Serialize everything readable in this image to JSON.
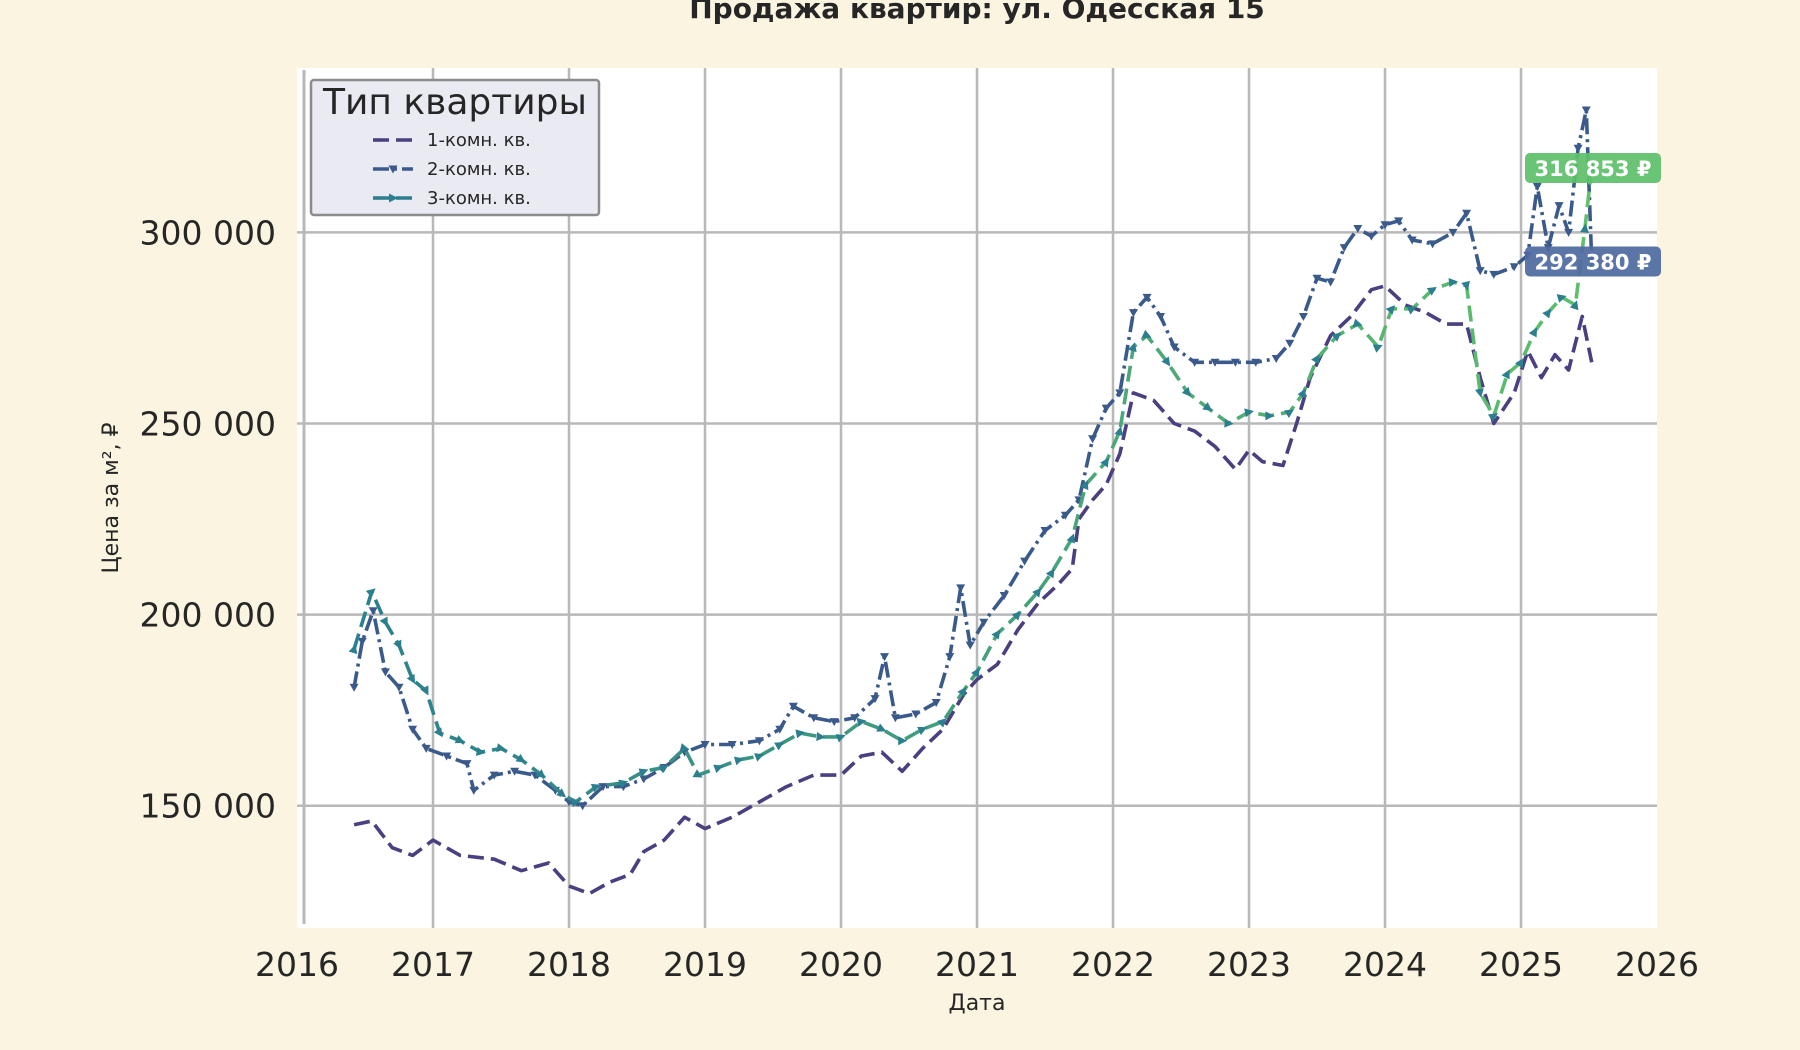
{
  "chart_data": {
    "type": "line",
    "title": "Продажа квартир: ул. Одесская 15",
    "xlabel": "Дата",
    "ylabel": "Цена за м², ₽",
    "xlim": [
      2016.0,
      2026.0
    ],
    "ylim": [
      118000,
      343000
    ],
    "x_ticks": [
      "2016",
      "2017",
      "2018",
      "2019",
      "2020",
      "2021",
      "2022",
      "2023",
      "2024",
      "2025",
      "2026"
    ],
    "y_ticks": [
      "150 000",
      "200 000",
      "250 000",
      "300 000"
    ],
    "grid": true,
    "legend": {
      "title": "Тип квартиры",
      "placement": "top-left"
    },
    "series": [
      {
        "name": "1-комн. кв.",
        "color": "#4a3f80",
        "line_style": "dashed",
        "marker": "none",
        "points": [
          [
            2016.42,
            145000
          ],
          [
            2016.55,
            146000
          ],
          [
            2016.7,
            139000
          ],
          [
            2016.85,
            137000
          ],
          [
            2017.0,
            141000
          ],
          [
            2017.2,
            137000
          ],
          [
            2017.45,
            136000
          ],
          [
            2017.65,
            133000
          ],
          [
            2017.85,
            135000
          ],
          [
            2018.0,
            129000
          ],
          [
            2018.15,
            127000
          ],
          [
            2018.3,
            130000
          ],
          [
            2018.45,
            132000
          ],
          [
            2018.55,
            138000
          ],
          [
            2018.7,
            141000
          ],
          [
            2018.85,
            147000
          ],
          [
            2019.0,
            144000
          ],
          [
            2019.2,
            147000
          ],
          [
            2019.4,
            151000
          ],
          [
            2019.6,
            155000
          ],
          [
            2019.8,
            158000
          ],
          [
            2020.0,
            158000
          ],
          [
            2020.15,
            163000
          ],
          [
            2020.3,
            164000
          ],
          [
            2020.45,
            159000
          ],
          [
            2020.6,
            165000
          ],
          [
            2020.75,
            170000
          ],
          [
            2020.9,
            179000
          ],
          [
            2021.0,
            183000
          ],
          [
            2021.15,
            187000
          ],
          [
            2021.3,
            196000
          ],
          [
            2021.45,
            203000
          ],
          [
            2021.6,
            208000
          ],
          [
            2021.7,
            212000
          ],
          [
            2021.75,
            225000
          ],
          [
            2021.85,
            230000
          ],
          [
            2021.95,
            234000
          ],
          [
            2022.05,
            242000
          ],
          [
            2022.15,
            258000
          ],
          [
            2022.3,
            256000
          ],
          [
            2022.45,
            250000
          ],
          [
            2022.6,
            248000
          ],
          [
            2022.75,
            244000
          ],
          [
            2022.9,
            238000
          ],
          [
            2023.0,
            243000
          ],
          [
            2023.1,
            240000
          ],
          [
            2023.25,
            239000
          ],
          [
            2023.35,
            250000
          ],
          [
            2023.45,
            262000
          ],
          [
            2023.6,
            273000
          ],
          [
            2023.75,
            278000
          ],
          [
            2023.9,
            285000
          ],
          [
            2024.0,
            286000
          ],
          [
            2024.15,
            281000
          ],
          [
            2024.3,
            279000
          ],
          [
            2024.45,
            276000
          ],
          [
            2024.6,
            276000
          ],
          [
            2024.7,
            262000
          ],
          [
            2024.8,
            250000
          ],
          [
            2024.95,
            258000
          ],
          [
            2025.05,
            269000
          ],
          [
            2025.15,
            262000
          ],
          [
            2025.25,
            268000
          ],
          [
            2025.35,
            264000
          ],
          [
            2025.45,
            278000
          ],
          [
            2025.52,
            266000
          ]
        ]
      },
      {
        "name": "2-комн. кв.",
        "color": "#3b5a8c",
        "line_style": "dashdot",
        "marker": "triangle-down",
        "points": [
          [
            2016.42,
            181000
          ],
          [
            2016.48,
            193000
          ],
          [
            2016.56,
            201000
          ],
          [
            2016.65,
            185000
          ],
          [
            2016.75,
            181000
          ],
          [
            2016.85,
            170000
          ],
          [
            2016.95,
            165000
          ],
          [
            2017.1,
            163000
          ],
          [
            2017.25,
            161000
          ],
          [
            2017.3,
            154000
          ],
          [
            2017.45,
            158000
          ],
          [
            2017.6,
            159000
          ],
          [
            2017.75,
            158000
          ],
          [
            2017.9,
            154000
          ],
          [
            2018.0,
            151000
          ],
          [
            2018.1,
            150000
          ],
          [
            2018.25,
            155000
          ],
          [
            2018.4,
            155000
          ],
          [
            2018.55,
            157000
          ],
          [
            2018.7,
            160000
          ],
          [
            2018.85,
            164000
          ],
          [
            2019.0,
            166000
          ],
          [
            2019.2,
            166000
          ],
          [
            2019.4,
            167000
          ],
          [
            2019.55,
            170000
          ],
          [
            2019.65,
            176000
          ],
          [
            2019.8,
            173000
          ],
          [
            2019.95,
            172000
          ],
          [
            2020.1,
            173000
          ],
          [
            2020.25,
            178000
          ],
          [
            2020.32,
            189000
          ],
          [
            2020.4,
            173000
          ],
          [
            2020.55,
            174000
          ],
          [
            2020.7,
            177000
          ],
          [
            2020.8,
            189000
          ],
          [
            2020.88,
            207000
          ],
          [
            2020.95,
            192000
          ],
          [
            2021.05,
            198000
          ],
          [
            2021.2,
            205000
          ],
          [
            2021.35,
            214000
          ],
          [
            2021.5,
            222000
          ],
          [
            2021.65,
            226000
          ],
          [
            2021.75,
            230000
          ],
          [
            2021.85,
            246000
          ],
          [
            2021.95,
            254000
          ],
          [
            2022.05,
            258000
          ],
          [
            2022.15,
            279000
          ],
          [
            2022.25,
            283000
          ],
          [
            2022.35,
            278000
          ],
          [
            2022.45,
            270000
          ],
          [
            2022.6,
            266000
          ],
          [
            2022.75,
            266000
          ],
          [
            2022.9,
            266000
          ],
          [
            2023.05,
            266000
          ],
          [
            2023.2,
            267000
          ],
          [
            2023.3,
            271000
          ],
          [
            2023.4,
            278000
          ],
          [
            2023.5,
            288000
          ],
          [
            2023.6,
            287000
          ],
          [
            2023.7,
            296000
          ],
          [
            2023.8,
            301000
          ],
          [
            2023.9,
            299000
          ],
          [
            2024.0,
            302000
          ],
          [
            2024.1,
            303000
          ],
          [
            2024.2,
            298000
          ],
          [
            2024.35,
            297000
          ],
          [
            2024.5,
            300000
          ],
          [
            2024.6,
            305000
          ],
          [
            2024.7,
            290000
          ],
          [
            2024.8,
            289000
          ],
          [
            2024.95,
            291000
          ],
          [
            2025.05,
            294000
          ],
          [
            2025.12,
            312000
          ],
          [
            2025.2,
            296000
          ],
          [
            2025.28,
            307000
          ],
          [
            2025.35,
            300000
          ],
          [
            2025.42,
            322000
          ],
          [
            2025.48,
            332000
          ],
          [
            2025.52,
            292380
          ]
        ]
      },
      {
        "name": "3-комн. кв.",
        "color": "#2b7f8f",
        "gradient_end": "#5ec06a",
        "line_style": "dashed",
        "marker": "triangle-right",
        "points": [
          [
            2016.42,
            191000
          ],
          [
            2016.55,
            206000
          ],
          [
            2016.65,
            198000
          ],
          [
            2016.75,
            192000
          ],
          [
            2016.85,
            183000
          ],
          [
            2016.95,
            180000
          ],
          [
            2017.05,
            169000
          ],
          [
            2017.2,
            167000
          ],
          [
            2017.35,
            164000
          ],
          [
            2017.5,
            165000
          ],
          [
            2017.65,
            162000
          ],
          [
            2017.8,
            158000
          ],
          [
            2017.95,
            153000
          ],
          [
            2018.05,
            151000
          ],
          [
            2018.2,
            155000
          ],
          [
            2018.4,
            156000
          ],
          [
            2018.55,
            159000
          ],
          [
            2018.7,
            160000
          ],
          [
            2018.85,
            165000
          ],
          [
            2018.95,
            158000
          ],
          [
            2019.1,
            160000
          ],
          [
            2019.25,
            162000
          ],
          [
            2019.4,
            163000
          ],
          [
            2019.55,
            166000
          ],
          [
            2019.7,
            169000
          ],
          [
            2019.85,
            168000
          ],
          [
            2020.0,
            168000
          ],
          [
            2020.15,
            172000
          ],
          [
            2020.3,
            170000
          ],
          [
            2020.45,
            167000
          ],
          [
            2020.6,
            170000
          ],
          [
            2020.75,
            172000
          ],
          [
            2020.9,
            180000
          ],
          [
            2021.0,
            185000
          ],
          [
            2021.15,
            195000
          ],
          [
            2021.3,
            200000
          ],
          [
            2021.45,
            206000
          ],
          [
            2021.55,
            211000
          ],
          [
            2021.7,
            220000
          ],
          [
            2021.8,
            234000
          ],
          [
            2021.95,
            240000
          ],
          [
            2022.05,
            248000
          ],
          [
            2022.15,
            270000
          ],
          [
            2022.25,
            273000
          ],
          [
            2022.4,
            266000
          ],
          [
            2022.55,
            258000
          ],
          [
            2022.7,
            254000
          ],
          [
            2022.85,
            250000
          ],
          [
            2023.0,
            253000
          ],
          [
            2023.15,
            252000
          ],
          [
            2023.3,
            253000
          ],
          [
            2023.4,
            258000
          ],
          [
            2023.5,
            267000
          ],
          [
            2023.65,
            273000
          ],
          [
            2023.8,
            276000
          ],
          [
            2023.95,
            270000
          ],
          [
            2024.05,
            280000
          ],
          [
            2024.2,
            280000
          ],
          [
            2024.35,
            285000
          ],
          [
            2024.5,
            287000
          ],
          [
            2024.6,
            286000
          ],
          [
            2024.7,
            258000
          ],
          [
            2024.8,
            252000
          ],
          [
            2024.9,
            263000
          ],
          [
            2025.0,
            266000
          ],
          [
            2025.1,
            274000
          ],
          [
            2025.2,
            279000
          ],
          [
            2025.3,
            283000
          ],
          [
            2025.4,
            281000
          ],
          [
            2025.47,
            301000
          ],
          [
            2025.52,
            316853
          ]
        ]
      }
    ],
    "annotations": [
      {
        "text": "316 853 ₽",
        "series": "3-комн. кв.",
        "color": "#5ec06a"
      },
      {
        "text": "292 380 ₽",
        "series": "2-комн. кв.",
        "color": "#4f6aa0"
      }
    ]
  }
}
